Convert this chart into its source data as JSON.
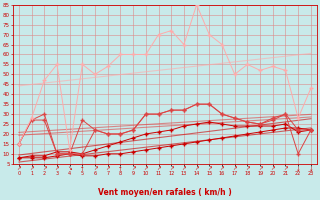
{
  "xlabel": "Vent moyen/en rafales ( km/h )",
  "bg_color": "#c8eaea",
  "grid_color": "#dd8888",
  "x": [
    0,
    1,
    2,
    3,
    4,
    5,
    6,
    7,
    8,
    9,
    10,
    11,
    12,
    13,
    14,
    15,
    16,
    17,
    18,
    19,
    20,
    21,
    22,
    23
  ],
  "ylim": [
    5,
    85
  ],
  "yticks": [
    5,
    10,
    15,
    20,
    25,
    30,
    35,
    40,
    45,
    50,
    55,
    60,
    65,
    70,
    75,
    80,
    85
  ],
  "line_dark1": [
    8,
    8,
    8,
    9,
    10,
    9,
    9,
    10,
    10,
    11,
    12,
    13,
    14,
    15,
    16,
    17,
    18,
    19,
    20,
    21,
    22,
    23,
    23,
    22
  ],
  "line_dark2": [
    8,
    9,
    9,
    11,
    11,
    10,
    12,
    14,
    16,
    18,
    20,
    21,
    22,
    24,
    25,
    26,
    25,
    24,
    24,
    24,
    24,
    25,
    21,
    22
  ],
  "line_dark3": [
    15,
    27,
    27,
    10,
    10,
    10,
    22,
    20,
    20,
    22,
    30,
    30,
    32,
    32,
    35,
    35,
    30,
    28,
    26,
    25,
    27,
    30,
    10,
    22
  ],
  "line_mid1": [
    15,
    27,
    30,
    10,
    10,
    27,
    22,
    20,
    20,
    22,
    30,
    30,
    32,
    32,
    35,
    35,
    30,
    28,
    26,
    25,
    28,
    30,
    22,
    22
  ],
  "line_light1": [
    15,
    28,
    47,
    55,
    12,
    55,
    50,
    54,
    60,
    60,
    60,
    70,
    72,
    65,
    85,
    70,
    65,
    50,
    55,
    52,
    54,
    52,
    28,
    43
  ],
  "trend_dark1": [
    8,
    23
  ],
  "trend_dark2": [
    9,
    25
  ],
  "trend_dark3": [
    14,
    28
  ],
  "trend_mid1": [
    15,
    30
  ],
  "trend_light1": [
    20,
    53
  ],
  "dark_color": "#cc0000",
  "mid_color": "#dd4444",
  "light_color": "#ffaaaa",
  "arrow_labels": [
    "↗",
    "↗",
    "↗",
    "↗",
    "↘",
    "↑",
    "↗",
    "↗",
    "↑",
    "↗",
    "↗",
    "↗",
    "↗",
    "↗",
    "↗",
    "↗",
    "↗",
    "↗",
    "↗",
    "↗",
    "↗",
    "↗",
    "↓",
    "↓"
  ]
}
